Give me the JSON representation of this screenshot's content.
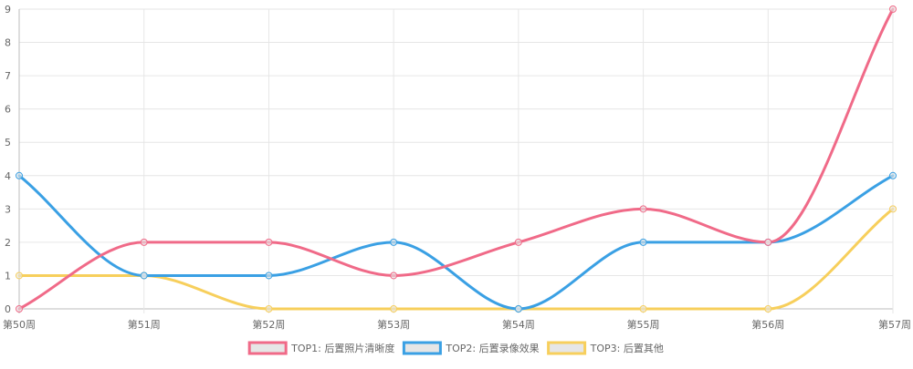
{
  "chart_data": {
    "type": "line",
    "categories": [
      "第50周",
      "第51周",
      "第52周",
      "第53周",
      "第54周",
      "第55周",
      "第56周",
      "第57周"
    ],
    "series": [
      {
        "name": "TOP1: 后置照片清晰度",
        "values": [
          0,
          2,
          2,
          1,
          2,
          3,
          2,
          9
        ],
        "color": "#f06a88"
      },
      {
        "name": "TOP2: 后置录像效果",
        "values": [
          4,
          1,
          1,
          2,
          0,
          2,
          2,
          4
        ],
        "color": "#3aa0e4"
      },
      {
        "name": "TOP3: 后置其他",
        "values": [
          1,
          1,
          0,
          0,
          0,
          0,
          0,
          3
        ],
        "color": "#f7cf5c"
      }
    ],
    "ylim": [
      0,
      9
    ],
    "yticks": [
      "0",
      "1",
      "2",
      "3",
      "4",
      "5",
      "6",
      "7",
      "8",
      "9"
    ],
    "grid": true,
    "legend_position": "bottom",
    "legend_swatch_fill": "#e6e6e6",
    "grid_color": "#e6e6e6",
    "axis_color": "#bdbdbd"
  }
}
